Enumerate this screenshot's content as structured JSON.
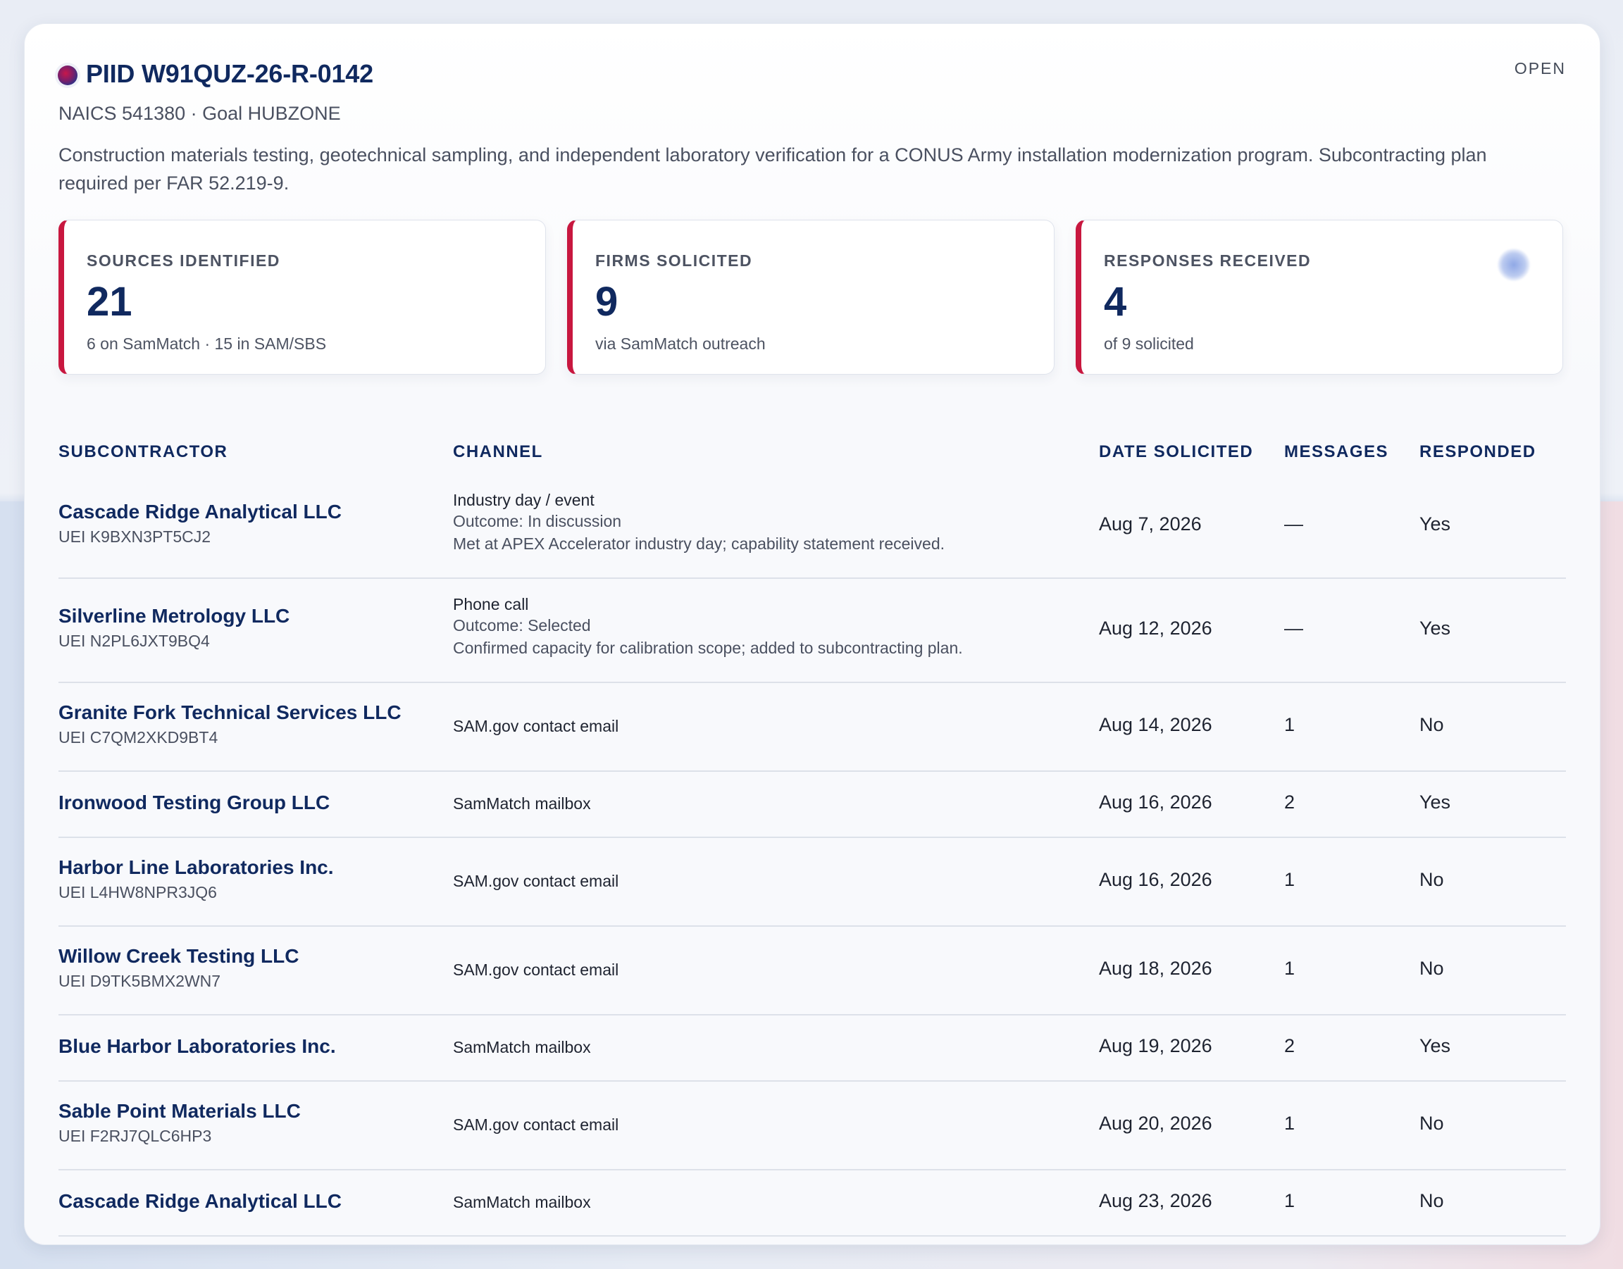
{
  "header": {
    "title": "PIID W91QUZ-26-R-0142",
    "status": "OPEN",
    "subtitle": "NAICS 541380 · Goal HUBZONE",
    "description": "Construction materials testing, geotechnical sampling, and independent laboratory verification for a CONUS Army installation modernization program. Subcontracting plan required per FAR 52.219-9."
  },
  "stats": [
    {
      "label": "SOURCES IDENTIFIED",
      "value": "21",
      "sub": "6 on SamMatch · 15 in SAM/SBS"
    },
    {
      "label": "FIRMS SOLICITED",
      "value": "9",
      "sub": "via SamMatch outreach"
    },
    {
      "label": "RESPONSES RECEIVED",
      "value": "4",
      "sub": "of 9 solicited"
    }
  ],
  "columns": [
    "SUBCONTRACTOR",
    "CHANNEL",
    "DATE SOLICITED",
    "MESSAGES",
    "RESPONDED"
  ],
  "rows": [
    {
      "name": "Cascade Ridge Analytical LLC",
      "uei": "UEI K9BXN3PT5CJ2",
      "channel": "Industry day / event",
      "outcome": "Outcome: In discussion",
      "note": "Met at APEX Accelerator industry day; capability statement received.",
      "date": "Aug 7, 2026",
      "messages": "—",
      "responded": "Yes"
    },
    {
      "name": "Silverline Metrology LLC",
      "uei": "UEI N2PL6JXT9BQ4",
      "channel": "Phone call",
      "outcome": "Outcome: Selected",
      "note": "Confirmed capacity for calibration scope; added to subcontracting plan.",
      "date": "Aug 12, 2026",
      "messages": "—",
      "responded": "Yes"
    },
    {
      "name": "Granite Fork Technical Services LLC",
      "uei": "UEI C7QM2XKD9BT4",
      "channel": "SAM.gov contact email",
      "outcome": "",
      "note": "",
      "date": "Aug 14, 2026",
      "messages": "1",
      "responded": "No"
    },
    {
      "name": "Ironwood Testing Group LLC",
      "uei": "",
      "channel": "SamMatch mailbox",
      "outcome": "",
      "note": "",
      "date": "Aug 16, 2026",
      "messages": "2",
      "responded": "Yes"
    },
    {
      "name": "Harbor Line Laboratories Inc.",
      "uei": "UEI L4HW8NPR3JQ6",
      "channel": "SAM.gov contact email",
      "outcome": "",
      "note": "",
      "date": "Aug 16, 2026",
      "messages": "1",
      "responded": "No"
    },
    {
      "name": "Willow Creek Testing LLC",
      "uei": "UEI D9TK5BMX2WN7",
      "channel": "SAM.gov contact email",
      "outcome": "",
      "note": "",
      "date": "Aug 18, 2026",
      "messages": "1",
      "responded": "No"
    },
    {
      "name": "Blue Harbor Laboratories Inc.",
      "uei": "",
      "channel": "SamMatch mailbox",
      "outcome": "",
      "note": "",
      "date": "Aug 19, 2026",
      "messages": "2",
      "responded": "Yes"
    },
    {
      "name": "Sable Point Materials LLC",
      "uei": "UEI F2RJ7QLC6HP3",
      "channel": "SAM.gov contact email",
      "outcome": "",
      "note": "",
      "date": "Aug 20, 2026",
      "messages": "1",
      "responded": "No"
    },
    {
      "name": "Cascade Ridge Analytical LLC",
      "uei": "",
      "channel": "SamMatch mailbox",
      "outcome": "",
      "note": "",
      "date": "Aug 23, 2026",
      "messages": "1",
      "responded": "No"
    }
  ],
  "colors": {
    "accent": "#c8173f",
    "navy": "#10295f",
    "muted": "#4a5060"
  }
}
